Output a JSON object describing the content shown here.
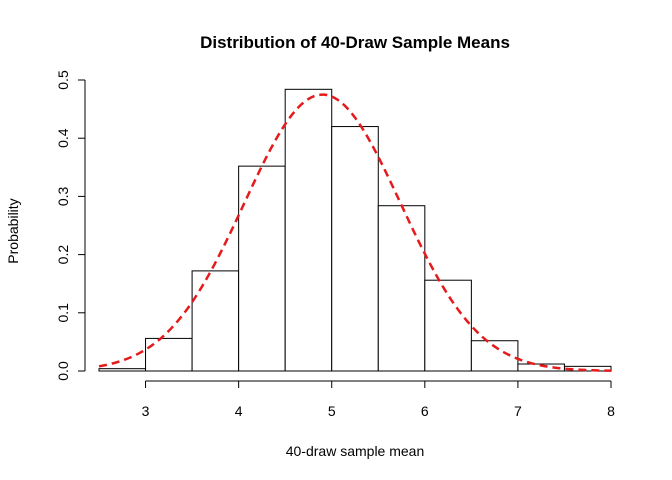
{
  "chart_data": {
    "type": "bar",
    "title": "Distribution of 40-Draw Sample Means",
    "xlabel": "40-draw sample mean",
    "ylabel": "Probability",
    "xlim": [
      2.5,
      8
    ],
    "ylim": [
      0,
      0.5
    ],
    "xticks": [
      "3",
      "4",
      "5",
      "6",
      "7",
      "8"
    ],
    "yticks": [
      "0.0",
      "0.1",
      "0.2",
      "0.3",
      "0.4",
      "0.5"
    ],
    "bins": [
      {
        "from": 2.5,
        "to": 3.0,
        "value": 0.004
      },
      {
        "from": 3.0,
        "to": 3.5,
        "value": 0.056
      },
      {
        "from": 3.5,
        "to": 4.0,
        "value": 0.172
      },
      {
        "from": 4.0,
        "to": 4.5,
        "value": 0.352
      },
      {
        "from": 4.5,
        "to": 5.0,
        "value": 0.484
      },
      {
        "from": 5.0,
        "to": 5.5,
        "value": 0.42
      },
      {
        "from": 5.5,
        "to": 6.0,
        "value": 0.284
      },
      {
        "from": 6.0,
        "to": 6.5,
        "value": 0.156
      },
      {
        "from": 6.5,
        "to": 7.0,
        "value": 0.052
      },
      {
        "from": 7.0,
        "to": 7.5,
        "value": 0.012
      },
      {
        "from": 7.5,
        "to": 8.0,
        "value": 0.008
      }
    ],
    "density_curve": {
      "style": "dashed",
      "color": "#e41a1c",
      "mean": 4.9,
      "sd": 0.84
    },
    "grid": false,
    "legend": "none"
  }
}
